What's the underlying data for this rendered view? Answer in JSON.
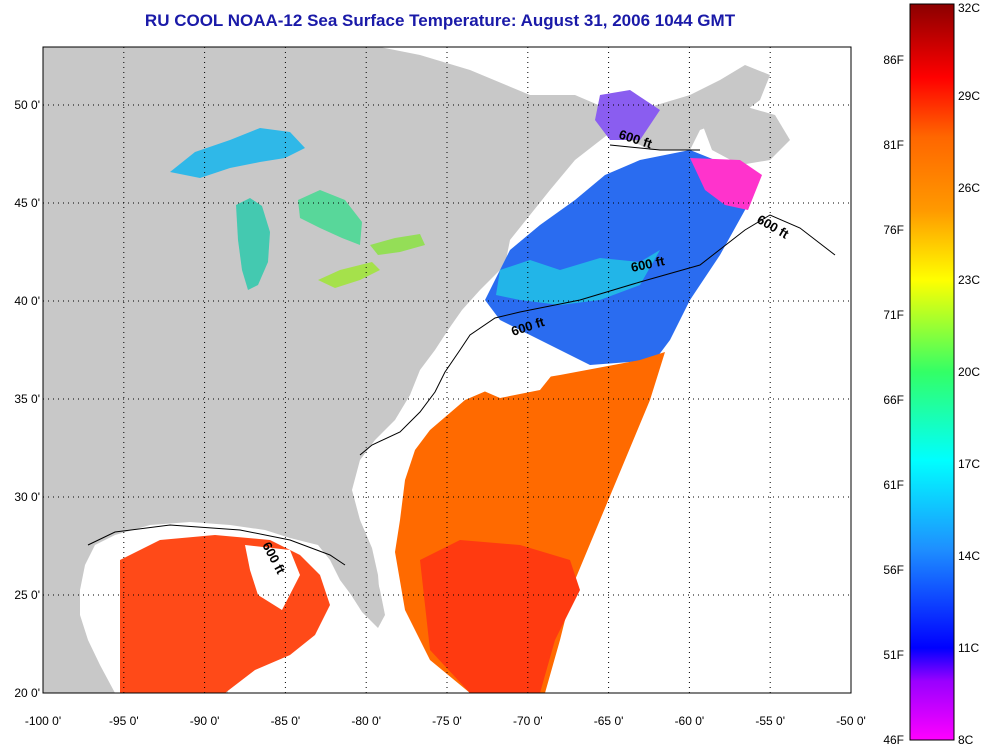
{
  "title": "RU COOL  NOAA-12  Sea Surface Temperature:  August 31, 2006 1044 GMT",
  "map": {
    "lon_ticks": [
      "-100 0'",
      "-95 0'",
      "-90 0'",
      "-85 0'",
      "-80 0'",
      "-75 0'",
      "-70 0'",
      "-65 0'",
      "-60 0'",
      "-55 0'",
      "-50 0'"
    ],
    "lat_ticks": [
      "50 0'",
      "45 0'",
      "40 0'",
      "35 0'",
      "30 0'",
      "25 0'",
      "20 0'"
    ],
    "contour_label": "600 ft",
    "colors": {
      "land": "#c8c8c8",
      "ocean_nodata": "#ffffff",
      "title": "#1a1aa8"
    }
  },
  "colorbar": {
    "celsius": [
      "32C",
      "29C",
      "26C",
      "23C",
      "20C",
      "17C",
      "14C",
      "11C",
      "8C"
    ],
    "fahrenheit": [
      "86F",
      "81F",
      "76F",
      "71F",
      "66F",
      "61F",
      "56F",
      "51F",
      "46F"
    ],
    "range_c": [
      8,
      32
    ],
    "colors": [
      "#ff00ff",
      "#0000ff",
      "#00ffff",
      "#00ff00",
      "#ffff00",
      "#ff8c00",
      "#ff0000",
      "#8b0000"
    ]
  }
}
